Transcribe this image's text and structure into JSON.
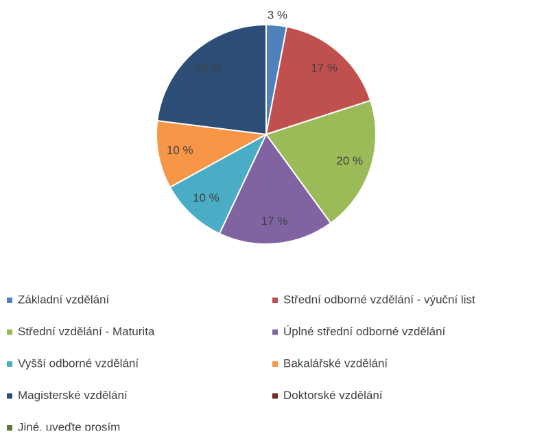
{
  "chart_data": {
    "type": "pie",
    "categories": [
      "Základní vzdělání",
      "Střední odborné vzdělání - výuční list",
      "Střední vzdělání - Maturita",
      "Úplné střední odborné vzdělání",
      "Vyšší odborné vzdělání",
      "Bakalářské vzdělání",
      "Magisterské vzdělání",
      "Doktorské vzdělání",
      "Jiné, uveďte prosím"
    ],
    "values": [
      3,
      17,
      20,
      17,
      10,
      10,
      23,
      0,
      0
    ],
    "value_labels": [
      "3 %",
      "17 %",
      "20 %",
      "17 %",
      "10 %",
      "10 %",
      "23 %",
      null,
      null
    ],
    "colors": [
      "#4f81bd",
      "#c0504d",
      "#9bbb59",
      "#8064a2",
      "#4bacc6",
      "#f79646",
      "#2c4d75",
      "#772c2a",
      "#5f7530"
    ],
    "legend": "bottom"
  }
}
